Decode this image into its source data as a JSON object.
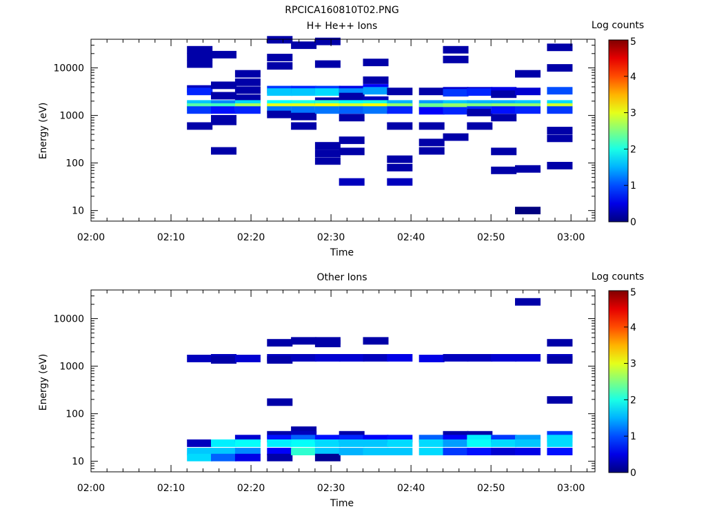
{
  "figure": {
    "title": "RPCICA160810T02.PNG"
  },
  "chart_data": [
    {
      "type": "heatmap",
      "title": "H+ He++ Ions",
      "xlabel": "Time",
      "ylabel": "Energy (eV)",
      "y_scale": "log",
      "ylim": [
        6,
        40000
      ],
      "xlim": [
        "02:00",
        "03:03"
      ],
      "x_ticks": [
        "02:00",
        "02:10",
        "02:20",
        "02:30",
        "02:40",
        "02:50",
        "03:00"
      ],
      "y_ticks": [
        "10",
        "100",
        "1000",
        "10000"
      ],
      "colorbar": {
        "label": "Log counts",
        "ticks": [
          "0",
          "1",
          "2",
          "3",
          "4",
          "5"
        ],
        "range": [
          0,
          5
        ]
      },
      "time_bins": [
        "02:12",
        "02:15",
        "02:18",
        "02:22",
        "02:25",
        "02:28",
        "02:31",
        "02:34",
        "02:37",
        "02:41",
        "02:44",
        "02:47",
        "02:50",
        "02:53",
        "02:57"
      ],
      "cells": [
        {
          "t": 0,
          "e": 24000,
          "v": 0.2
        },
        {
          "t": 0,
          "e": 17000,
          "v": 0.2
        },
        {
          "t": 0,
          "e": 12000,
          "v": 0.2
        },
        {
          "t": 0,
          "e": 3600,
          "v": 0.3
        },
        {
          "t": 0,
          "e": 3200,
          "v": 0.8
        },
        {
          "t": 0,
          "e": 1750,
          "v": 1.6
        },
        {
          "t": 0,
          "e": 1500,
          "v": 2.3
        },
        {
          "t": 0,
          "e": 1300,
          "v": 0.9
        },
        {
          "t": 0,
          "e": 600,
          "v": 0.2
        },
        {
          "t": 1,
          "e": 19000,
          "v": 0.2
        },
        {
          "t": 1,
          "e": 4300,
          "v": 0.2
        },
        {
          "t": 1,
          "e": 2600,
          "v": 0.2
        },
        {
          "t": 1,
          "e": 1750,
          "v": 1.3
        },
        {
          "t": 1,
          "e": 1500,
          "v": 2.2
        },
        {
          "t": 1,
          "e": 1300,
          "v": 0.7
        },
        {
          "t": 1,
          "e": 850,
          "v": 0.2
        },
        {
          "t": 1,
          "e": 750,
          "v": 0.2
        },
        {
          "t": 1,
          "e": 180,
          "v": 0.2
        },
        {
          "t": 2,
          "e": 7500,
          "v": 0.2
        },
        {
          "t": 2,
          "e": 5000,
          "v": 0.2
        },
        {
          "t": 2,
          "e": 3400,
          "v": 0.2
        },
        {
          "t": 2,
          "e": 2300,
          "v": 0.2
        },
        {
          "t": 2,
          "e": 1750,
          "v": 1.7
        },
        {
          "t": 2,
          "e": 1500,
          "v": 2.7
        },
        {
          "t": 2,
          "e": 1300,
          "v": 0.8
        },
        {
          "t": 3,
          "e": 39000,
          "v": 0.2
        },
        {
          "t": 3,
          "e": 16500,
          "v": 0.2
        },
        {
          "t": 3,
          "e": 11000,
          "v": 0.2
        },
        {
          "t": 3,
          "e": 3500,
          "v": 0.9
        },
        {
          "t": 3,
          "e": 3100,
          "v": 1.6
        },
        {
          "t": 3,
          "e": 1750,
          "v": 1.9
        },
        {
          "t": 3,
          "e": 1500,
          "v": 3.0
        },
        {
          "t": 3,
          "e": 1300,
          "v": 1.2
        },
        {
          "t": 3,
          "e": 1050,
          "v": 0.2
        },
        {
          "t": 4,
          "e": 30000,
          "v": 0.2
        },
        {
          "t": 4,
          "e": 3500,
          "v": 0.8
        },
        {
          "t": 4,
          "e": 3100,
          "v": 1.6
        },
        {
          "t": 4,
          "e": 1750,
          "v": 2.0
        },
        {
          "t": 4,
          "e": 1500,
          "v": 3.0
        },
        {
          "t": 4,
          "e": 1300,
          "v": 1.2
        },
        {
          "t": 4,
          "e": 950,
          "v": 0.2
        },
        {
          "t": 4,
          "e": 600,
          "v": 0.2
        },
        {
          "t": 5,
          "e": 36000,
          "v": 0.2
        },
        {
          "t": 5,
          "e": 12000,
          "v": 0.2
        },
        {
          "t": 5,
          "e": 3500,
          "v": 0.9
        },
        {
          "t": 5,
          "e": 3100,
          "v": 1.7
        },
        {
          "t": 5,
          "e": 2000,
          "v": 0.2
        },
        {
          "t": 5,
          "e": 1750,
          "v": 2.1
        },
        {
          "t": 5,
          "e": 1500,
          "v": 3.1
        },
        {
          "t": 5,
          "e": 1300,
          "v": 1.2
        },
        {
          "t": 5,
          "e": 230,
          "v": 0.2
        },
        {
          "t": 5,
          "e": 160,
          "v": 0.2
        },
        {
          "t": 5,
          "e": 110,
          "v": 0.2
        },
        {
          "t": 6,
          "e": 3500,
          "v": 0.5
        },
        {
          "t": 6,
          "e": 3100,
          "v": 1.3
        },
        {
          "t": 6,
          "e": 2500,
          "v": 0.2
        },
        {
          "t": 6,
          "e": 1750,
          "v": 1.9
        },
        {
          "t": 6,
          "e": 1500,
          "v": 2.9
        },
        {
          "t": 6,
          "e": 1300,
          "v": 1.1
        },
        {
          "t": 6,
          "e": 900,
          "v": 0.2
        },
        {
          "t": 6,
          "e": 300,
          "v": 0.2
        },
        {
          "t": 6,
          "e": 175,
          "v": 0.2
        },
        {
          "t": 6,
          "e": 40,
          "v": 0.3
        },
        {
          "t": 7,
          "e": 13000,
          "v": 0.2
        },
        {
          "t": 7,
          "e": 5500,
          "v": 0.2
        },
        {
          "t": 7,
          "e": 3800,
          "v": 0.6
        },
        {
          "t": 7,
          "e": 3300,
          "v": 1.4
        },
        {
          "t": 7,
          "e": 2100,
          "v": 0.3
        },
        {
          "t": 7,
          "e": 1750,
          "v": 2.0
        },
        {
          "t": 7,
          "e": 1500,
          "v": 3.1
        },
        {
          "t": 7,
          "e": 1300,
          "v": 1.2
        },
        {
          "t": 8,
          "e": 3200,
          "v": 0.2
        },
        {
          "t": 8,
          "e": 1750,
          "v": 1.5
        },
        {
          "t": 8,
          "e": 1500,
          "v": 2.6
        },
        {
          "t": 8,
          "e": 1300,
          "v": 0.8
        },
        {
          "t": 8,
          "e": 600,
          "v": 0.2
        },
        {
          "t": 8,
          "e": 120,
          "v": 0.2
        },
        {
          "t": 8,
          "e": 80,
          "v": 0.2
        },
        {
          "t": 8,
          "e": 40,
          "v": 0.3
        },
        {
          "t": 9,
          "e": 3200,
          "v": 0.2
        },
        {
          "t": 9,
          "e": 1750,
          "v": 1.4
        },
        {
          "t": 9,
          "e": 1500,
          "v": 2.4
        },
        {
          "t": 9,
          "e": 1250,
          "v": 0.6
        },
        {
          "t": 9,
          "e": 600,
          "v": 0.2
        },
        {
          "t": 9,
          "e": 270,
          "v": 0.2
        },
        {
          "t": 9,
          "e": 180,
          "v": 0.2
        },
        {
          "t": 10,
          "e": 24000,
          "v": 0.2
        },
        {
          "t": 10,
          "e": 15000,
          "v": 0.2
        },
        {
          "t": 10,
          "e": 3300,
          "v": 0.4
        },
        {
          "t": 10,
          "e": 3000,
          "v": 0.9
        },
        {
          "t": 10,
          "e": 1750,
          "v": 1.6
        },
        {
          "t": 10,
          "e": 1500,
          "v": 2.6
        },
        {
          "t": 10,
          "e": 1250,
          "v": 0.8
        },
        {
          "t": 10,
          "e": 350,
          "v": 0.2
        },
        {
          "t": 11,
          "e": 3300,
          "v": 0.4
        },
        {
          "t": 11,
          "e": 3100,
          "v": 0.8
        },
        {
          "t": 11,
          "e": 1750,
          "v": 1.5
        },
        {
          "t": 11,
          "e": 1500,
          "v": 2.5
        },
        {
          "t": 11,
          "e": 1300,
          "v": 0.8
        },
        {
          "t": 11,
          "e": 1150,
          "v": 0.2
        },
        {
          "t": 11,
          "e": 600,
          "v": 0.2
        },
        {
          "t": 12,
          "e": 3300,
          "v": 0.5
        },
        {
          "t": 12,
          "e": 2800,
          "v": 0.2
        },
        {
          "t": 12,
          "e": 1750,
          "v": 1.5
        },
        {
          "t": 12,
          "e": 1500,
          "v": 2.6
        },
        {
          "t": 12,
          "e": 1300,
          "v": 0.7
        },
        {
          "t": 12,
          "e": 900,
          "v": 0.2
        },
        {
          "t": 12,
          "e": 175,
          "v": 0.2
        },
        {
          "t": 12,
          "e": 70,
          "v": 0.2
        },
        {
          "t": 13,
          "e": 7500,
          "v": 0.2
        },
        {
          "t": 13,
          "e": 3200,
          "v": 0.4
        },
        {
          "t": 13,
          "e": 1750,
          "v": 1.6
        },
        {
          "t": 13,
          "e": 1500,
          "v": 2.6
        },
        {
          "t": 13,
          "e": 1300,
          "v": 0.8
        },
        {
          "t": 13,
          "e": 75,
          "v": 0.2
        },
        {
          "t": 13,
          "e": 10,
          "v": 0.0
        },
        {
          "t": 14,
          "e": 27000,
          "v": 0.2
        },
        {
          "t": 14,
          "e": 10000,
          "v": 0.2
        },
        {
          "t": 14,
          "e": 3300,
          "v": 1.0
        },
        {
          "t": 14,
          "e": 1750,
          "v": 1.7
        },
        {
          "t": 14,
          "e": 1500,
          "v": 2.9
        },
        {
          "t": 14,
          "e": 1300,
          "v": 0.9
        },
        {
          "t": 14,
          "e": 480,
          "v": 0.2
        },
        {
          "t": 14,
          "e": 330,
          "v": 0.2
        },
        {
          "t": 14,
          "e": 88,
          "v": 0.2
        }
      ]
    },
    {
      "type": "heatmap",
      "title": "Other Ions",
      "xlabel": "Time",
      "ylabel": "Energy (eV)",
      "y_scale": "log",
      "ylim": [
        6,
        40000
      ],
      "xlim": [
        "02:00",
        "03:03"
      ],
      "x_ticks": [
        "02:00",
        "02:10",
        "02:20",
        "02:30",
        "02:40",
        "02:50",
        "03:00"
      ],
      "y_ticks": [
        "10",
        "100",
        "1000",
        "10000"
      ],
      "colorbar": {
        "label": "Log counts",
        "ticks": [
          "0",
          "1",
          "2",
          "3",
          "4",
          "5"
        ],
        "range": [
          0,
          5
        ]
      },
      "time_bins": [
        "02:12",
        "02:15",
        "02:18",
        "02:22",
        "02:25",
        "02:28",
        "02:31",
        "02:34",
        "02:37",
        "02:41",
        "02:44",
        "02:47",
        "02:50",
        "02:53",
        "02:57"
      ],
      "cells": [
        {
          "t": 0,
          "e": 1450,
          "v": 0.3
        },
        {
          "t": 0,
          "e": 24,
          "v": 0.3
        },
        {
          "t": 0,
          "e": 16,
          "v": 1.6
        },
        {
          "t": 0,
          "e": 12,
          "v": 1.7
        },
        {
          "t": 1,
          "e": 1500,
          "v": 0.3
        },
        {
          "t": 1,
          "e": 1350,
          "v": 0.2
        },
        {
          "t": 1,
          "e": 24,
          "v": 1.8
        },
        {
          "t": 1,
          "e": 16,
          "v": 1.6
        },
        {
          "t": 1,
          "e": 12,
          "v": 1.1
        },
        {
          "t": 2,
          "e": 1450,
          "v": 0.4
        },
        {
          "t": 2,
          "e": 30,
          "v": 0.4
        },
        {
          "t": 2,
          "e": 24,
          "v": 1.9
        },
        {
          "t": 2,
          "e": 16,
          "v": 1.3
        },
        {
          "t": 2,
          "e": 12,
          "v": 0.5
        },
        {
          "t": 3,
          "e": 3100,
          "v": 0.2
        },
        {
          "t": 3,
          "e": 1500,
          "v": 0.3
        },
        {
          "t": 3,
          "e": 1350,
          "v": 0.2
        },
        {
          "t": 3,
          "e": 175,
          "v": 0.2
        },
        {
          "t": 3,
          "e": 36,
          "v": 0.2
        },
        {
          "t": 3,
          "e": 30,
          "v": 0.7
        },
        {
          "t": 3,
          "e": 24,
          "v": 1.8
        },
        {
          "t": 3,
          "e": 16,
          "v": 0.6
        },
        {
          "t": 3,
          "e": 12,
          "v": 0.2
        },
        {
          "t": 4,
          "e": 3400,
          "v": 0.2
        },
        {
          "t": 4,
          "e": 1500,
          "v": 0.3
        },
        {
          "t": 4,
          "e": 45,
          "v": 0.2
        },
        {
          "t": 4,
          "e": 36,
          "v": 0.3
        },
        {
          "t": 4,
          "e": 30,
          "v": 1.1
        },
        {
          "t": 4,
          "e": 24,
          "v": 1.9
        },
        {
          "t": 4,
          "e": 16,
          "v": 2.1
        },
        {
          "t": 5,
          "e": 3400,
          "v": 0.2
        },
        {
          "t": 5,
          "e": 3000,
          "v": 0.2
        },
        {
          "t": 5,
          "e": 1500,
          "v": 0.4
        },
        {
          "t": 5,
          "e": 30,
          "v": 0.7
        },
        {
          "t": 5,
          "e": 24,
          "v": 1.7
        },
        {
          "t": 5,
          "e": 16,
          "v": 1.6
        },
        {
          "t": 5,
          "e": 12,
          "v": 0.1
        },
        {
          "t": 6,
          "e": 1500,
          "v": 0.4
        },
        {
          "t": 6,
          "e": 36,
          "v": 0.2
        },
        {
          "t": 6,
          "e": 30,
          "v": 0.8
        },
        {
          "t": 6,
          "e": 24,
          "v": 1.6
        },
        {
          "t": 6,
          "e": 16,
          "v": 1.5
        },
        {
          "t": 7,
          "e": 3400,
          "v": 0.2
        },
        {
          "t": 7,
          "e": 1500,
          "v": 0.3
        },
        {
          "t": 7,
          "e": 30,
          "v": 0.6
        },
        {
          "t": 7,
          "e": 24,
          "v": 1.6
        },
        {
          "t": 7,
          "e": 16,
          "v": 1.6
        },
        {
          "t": 8,
          "e": 1500,
          "v": 0.5
        },
        {
          "t": 8,
          "e": 30,
          "v": 0.7
        },
        {
          "t": 8,
          "e": 24,
          "v": 1.7
        },
        {
          "t": 8,
          "e": 16,
          "v": 1.6
        },
        {
          "t": 9,
          "e": 1450,
          "v": 0.5
        },
        {
          "t": 9,
          "e": 30,
          "v": 1.1
        },
        {
          "t": 9,
          "e": 24,
          "v": 1.7
        },
        {
          "t": 9,
          "e": 16,
          "v": 1.7
        },
        {
          "t": 10,
          "e": 1500,
          "v": 0.3
        },
        {
          "t": 10,
          "e": 36,
          "v": 0.2
        },
        {
          "t": 10,
          "e": 30,
          "v": 0.6
        },
        {
          "t": 10,
          "e": 24,
          "v": 1.4
        },
        {
          "t": 10,
          "e": 16,
          "v": 0.9
        },
        {
          "t": 11,
          "e": 1500,
          "v": 0.3
        },
        {
          "t": 11,
          "e": 36,
          "v": 0.2
        },
        {
          "t": 11,
          "e": 30,
          "v": 1.8
        },
        {
          "t": 11,
          "e": 24,
          "v": 1.9
        },
        {
          "t": 11,
          "e": 16,
          "v": 0.7
        },
        {
          "t": 12,
          "e": 1500,
          "v": 0.4
        },
        {
          "t": 12,
          "e": 30,
          "v": 0.9
        },
        {
          "t": 12,
          "e": 24,
          "v": 1.7
        },
        {
          "t": 12,
          "e": 16,
          "v": 0.4
        },
        {
          "t": 13,
          "e": 22500,
          "v": 0.2
        },
        {
          "t": 13,
          "e": 1500,
          "v": 0.4
        },
        {
          "t": 13,
          "e": 30,
          "v": 1.4
        },
        {
          "t": 13,
          "e": 24,
          "v": 1.6
        },
        {
          "t": 13,
          "e": 16,
          "v": 0.5
        },
        {
          "t": 14,
          "e": 3100,
          "v": 0.2
        },
        {
          "t": 14,
          "e": 1500,
          "v": 0.3
        },
        {
          "t": 14,
          "e": 1350,
          "v": 0.2
        },
        {
          "t": 14,
          "e": 195,
          "v": 0.2
        },
        {
          "t": 14,
          "e": 36,
          "v": 0.9
        },
        {
          "t": 14,
          "e": 30,
          "v": 1.7
        },
        {
          "t": 14,
          "e": 24,
          "v": 1.7
        },
        {
          "t": 14,
          "e": 16,
          "v": 0.7
        }
      ]
    }
  ]
}
